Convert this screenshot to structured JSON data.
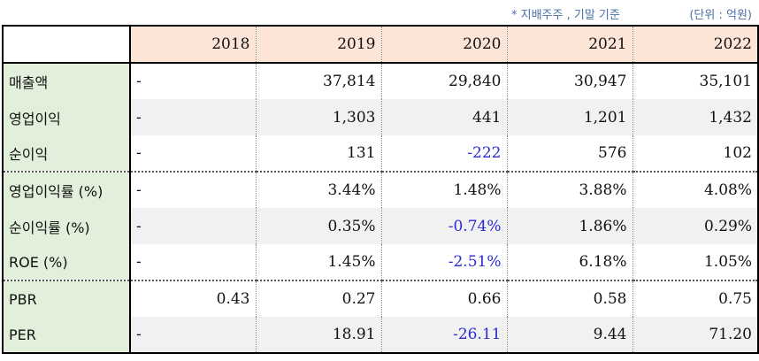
{
  "notes": {
    "basis": "* 지배주주 , 기말 기준",
    "unit": "(단위 : 억원)"
  },
  "table": {
    "years": [
      "2018",
      "2019",
      "2020",
      "2021",
      "2022"
    ],
    "rows": [
      {
        "label": "매출액",
        "values": [
          "-",
          "37,814",
          "29,840",
          "30,947",
          "35,101"
        ]
      },
      {
        "label": "영업이익",
        "values": [
          "-",
          "1,303",
          "441",
          "1,201",
          "1,432"
        ]
      },
      {
        "label": "순이익",
        "values": [
          "-",
          "131",
          "-222",
          "576",
          "102"
        ]
      },
      {
        "label": "영업이익률 (%)",
        "values": [
          "-",
          "3.44%",
          "1.48%",
          "3.88%",
          "4.08%"
        ]
      },
      {
        "label": "순이익률 (%)",
        "values": [
          "-",
          "0.35%",
          "-0.74%",
          "1.86%",
          "0.29%"
        ]
      },
      {
        "label": "ROE (%)",
        "values": [
          "-",
          "1.45%",
          "-2.51%",
          "6.18%",
          "1.05%"
        ]
      },
      {
        "label": "PBR",
        "values": [
          "0.43",
          "0.27",
          "0.66",
          "0.58",
          "0.75"
        ]
      },
      {
        "label": "PER",
        "values": [
          "-",
          "18.91",
          "-26.11",
          "9.44",
          "71.20"
        ]
      }
    ]
  },
  "colors": {
    "header_bg": "#fce4d6",
    "label_bg": "#e2efda",
    "negative_text": "#2b2bd6",
    "note_text": "#4a6fa5"
  }
}
